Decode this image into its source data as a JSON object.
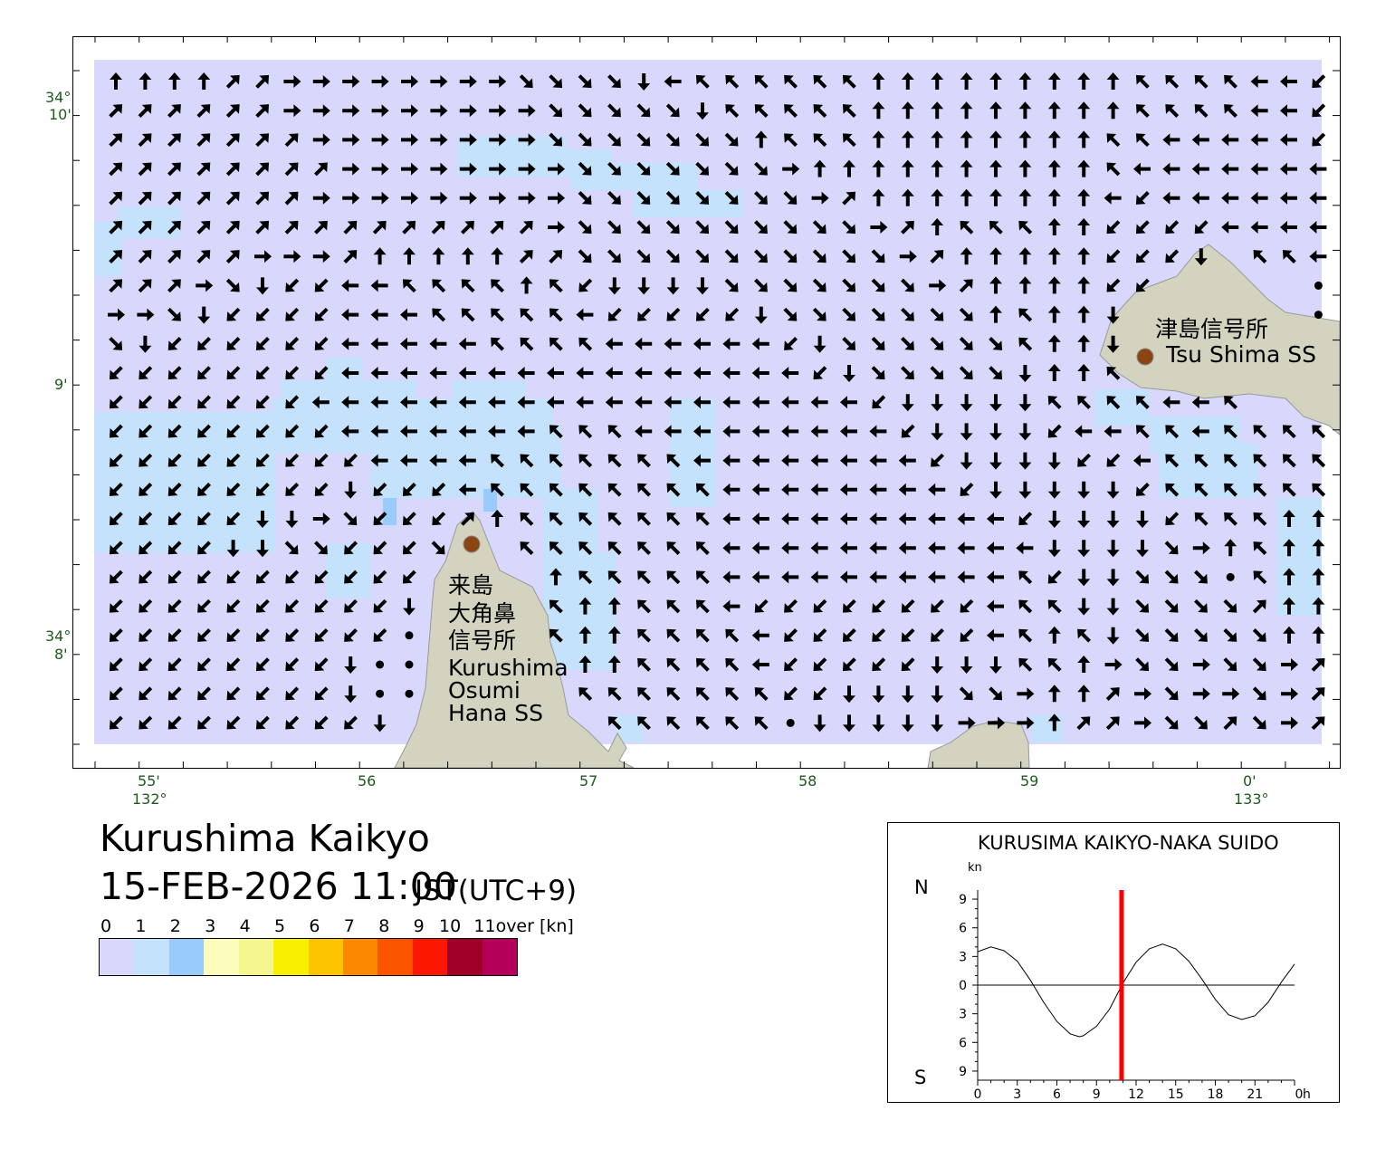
{
  "map": {
    "x_ticks": [
      {
        "label": "55'",
        "sub": "132°"
      },
      {
        "label": "56",
        "sub": ""
      },
      {
        "label": "57",
        "sub": ""
      },
      {
        "label": "58",
        "sub": ""
      },
      {
        "label": "59",
        "sub": ""
      },
      {
        "label": "0'",
        "sub": "133°"
      }
    ],
    "y_ticks": [
      {
        "label": "34°",
        "sub": "10'"
      },
      {
        "label": "9'",
        "sub": ""
      },
      {
        "label": "34°",
        "sub": "8'"
      }
    ],
    "stations": [
      {
        "name_ja": "津島信号所",
        "name_en": "Tsu Shima SS"
      },
      {
        "name_ja_lines": [
          "来島",
          "大角鼻",
          "信号所"
        ],
        "name_en_lines": [
          "Kurushima",
          "Osumi",
          "Hana SS"
        ]
      }
    ],
    "colors": {
      "water_0_1": "#d8d8fc",
      "water_1_2": "#c4e2fc",
      "water_2_3": "#99cbfd",
      "land": "#d4d3c0",
      "station": "#8b4513",
      "arrow": "#000000"
    },
    "arrow_encoding": "E=east a=NE N=north d=NW W=west c=SW S=south b=SE .=calm space=land",
    "arrow_rows": [
      "NNNNaaEEEEEEEEbbbbSWddddddNNNNNNNNNddddWWc",
      "aaaaaaEEEEEEEEEbbbbbSdddddNNNNNNNNNddddWWc",
      "aaaaaaaEEEEEEEEbbbbbbbNdddNNNNNNNNddWWWWWc",
      "aaaaaaaaEEEEEEEEbbbbbbbENNNNNNNNNNdWWWWWWW",
      "aaaaaaaEEEEEEEEEbbbbbbbbEaNNNNNNNNWcWWWWWW",
      "aaaaaaaaaaaaaaaEbbbbbbbbbbEaNdddNNccccWWWW",
      "aaaaaEEEaNNNNNaabbbbbbbbbbbEaNNNNNcccS ddW",
      "aaaEbSccWWddddNdcSSSSbbbbbbbEaNNNNcc     .",
      "EEbSccccWWWdddddWcccccSbbbbbbbNdNNS      .",
      "bSccccccWWWWWddddWWWWWWcSbbbbbbdNNS       ",
      "ccccccccWWWWWWWWWWWWWWWWcSbbbbbSNNd       ",
      "cccccccWWWWWWWWWWWWWWWWWWWcSSSSSddddWWd   ",
      "ccccccccWWWWWWWdddWWWWWWWWWcSSSScWWddWdddd",
      "cccccccccWWWWdddddddWWWWWWWWcSSSSccWdddddd",
      "ccccccccScccWddddddddWWWWWWWWcSSSSScdddddd",
      "cccccSSEbcccaNdddddddWWWWWWWWWWcSSSScdddNN",
      "ccccSSbbcccb  dddddddWWWWWWWWWWWSSSSbENdNN",
      "ccccccccccc    NdddddWWWWWWWWWWdcSSbbb.dNN",
      "ccccccccccS    dNNdddWccccccccWddSSbbbbaNN",
      "cccccccccc.    dNNddddWcccccccWdNdSbbbbbNN",
      "ccccccccS..     NNddddWcccccSSSddNEbbEbbEa",
      "ccccccccS..     dddddddccSSSSbbENNaEbEEbEa",
      "cccccccccS       dddddd.SSSSSEEENaaEbbabEa"
    ]
  },
  "title": "Kurushima Kaikyo",
  "datetime": "15-FEB-2026 11:00",
  "timezone": "JST(UTC+9)",
  "legend": {
    "labels": [
      "0",
      "1",
      "2",
      "3",
      "4",
      "5",
      "6",
      "7",
      "8",
      "9",
      "10",
      "11over [kn]"
    ],
    "colors": [
      "#d8d8fc",
      "#c4e2fc",
      "#99cbfd",
      "#fdfdbb",
      "#f6f690",
      "#f8f000",
      "#fcc500",
      "#fc8800",
      "#fc5500",
      "#fc1800",
      "#a00026",
      "#b40058"
    ]
  },
  "chart_data": {
    "type": "line",
    "title": "KURUSIMA KAIKYO-NAKA SUIDO",
    "ylabel": "kn",
    "y_top_label": "N",
    "y_bottom_label": "S",
    "y_tick_labels": [
      "9",
      "6",
      "3",
      "0",
      "3",
      "6",
      "9"
    ],
    "y_ticks": [
      9,
      6,
      3,
      0,
      -3,
      -6,
      -9
    ],
    "x_tick_labels": [
      "0",
      "3",
      "6",
      "9",
      "12",
      "15",
      "18",
      "21",
      "0"
    ],
    "x_unit": "h",
    "xlim": [
      0,
      24
    ],
    "ylim": [
      -10,
      10
    ],
    "current_time_h": 10.9,
    "current_time_color": "#ff0000",
    "x": [
      0,
      1,
      2,
      3,
      4,
      5,
      6,
      7,
      7.7,
      8,
      9,
      10,
      11,
      12,
      13,
      14,
      15,
      16,
      17,
      18,
      19,
      20,
      21,
      22,
      23,
      24
    ],
    "values": [
      3.5,
      4.0,
      3.6,
      2.5,
      0.5,
      -1.8,
      -3.8,
      -5.1,
      -5.4,
      -5.3,
      -4.3,
      -2.5,
      0.2,
      2.4,
      3.8,
      4.3,
      3.8,
      2.5,
      0.6,
      -1.5,
      -3.1,
      -3.6,
      -3.2,
      -1.8,
      0.3,
      2.2
    ]
  }
}
